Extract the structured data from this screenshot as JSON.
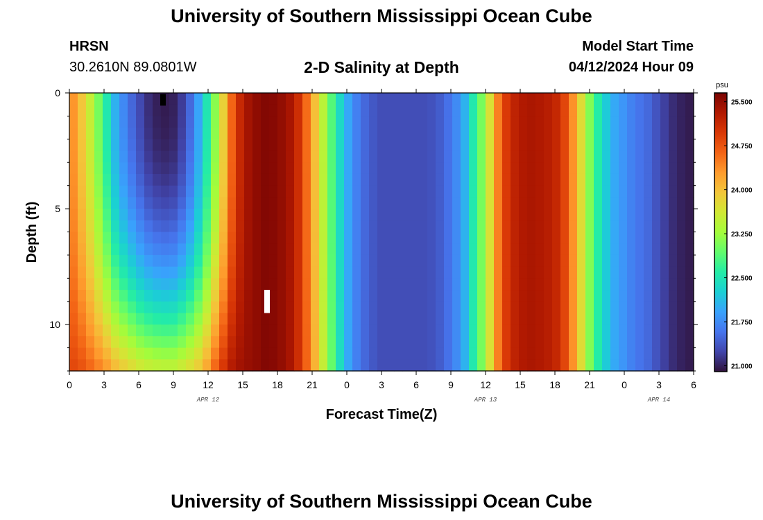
{
  "header": {
    "title": "University of Southern Mississippi Ocean Cube",
    "station": "HRSN",
    "coords": "30.2610N  89.0801W",
    "subtitle": "2-D Salinity at Depth",
    "model_start_label": "Model Start Time",
    "model_start_value": "04/12/2024 Hour 09"
  },
  "footer": {
    "title": "University of Southern Mississippi Ocean Cube"
  },
  "colors": {
    "background": "#ffffff",
    "palette": [
      "#30123b",
      "#4145ab",
      "#4675ed",
      "#39a2fc",
      "#1bcfd4",
      "#24eca6",
      "#61fc6c",
      "#a4fc3b",
      "#d1e834",
      "#f3c63a",
      "#fe9b2d",
      "#f36315",
      "#d93806",
      "#b11901",
      "#7a0403"
    ]
  },
  "chart_data": {
    "type": "heatmap",
    "title": "2-D Salinity at Depth",
    "xlabel": "Forecast Time(Z)",
    "ylabel": "Depth (ft)",
    "x_range_hours": [
      0,
      54
    ],
    "y_range_ft": [
      0,
      12
    ],
    "x_tick_hours": [
      0,
      3,
      6,
      9,
      12,
      15,
      18,
      21,
      24,
      27,
      30,
      33,
      36,
      39,
      42,
      45,
      48,
      51,
      54
    ],
    "x_tick_labels": [
      "0",
      "3",
      "6",
      "9",
      "12",
      "15",
      "18",
      "21",
      "0",
      "3",
      "6",
      "9",
      "12",
      "15",
      "18",
      "21",
      "0",
      "3",
      "6"
    ],
    "y_major_ticks": [
      0,
      5,
      10
    ],
    "y_tick_labels": [
      "0",
      "5",
      "10"
    ],
    "y_minor_step": 1,
    "date_labels": [
      {
        "label": "APR 12",
        "hour": 12
      },
      {
        "label": "APR 13",
        "hour": 36
      },
      {
        "label": "APR 14",
        "hour": 51
      }
    ],
    "colorbar": {
      "unit": "psu",
      "min": 20.9,
      "max": 25.65,
      "tick_values": [
        21.0,
        21.75,
        22.5,
        23.25,
        24.0,
        24.75,
        25.5
      ],
      "tick_labels": [
        "21.000",
        "21.750",
        "22.500",
        "23.250",
        "24.000",
        "24.750",
        "25.500"
      ]
    },
    "hours": [
      0,
      1,
      2,
      3,
      4,
      5,
      6,
      7,
      8,
      9,
      10,
      11,
      12,
      13,
      14,
      15,
      16,
      17,
      18,
      19,
      20,
      21,
      22,
      23,
      24,
      25,
      26,
      27,
      28,
      29,
      30,
      31,
      32,
      33,
      34,
      35,
      36,
      37,
      38,
      39,
      40,
      41,
      42,
      43,
      44,
      45,
      46,
      47,
      48,
      49,
      50,
      51,
      52,
      53,
      54
    ],
    "surface_salinity": [
      24.5,
      24.0,
      23.4,
      22.7,
      22.0,
      21.6,
      21.3,
      21.05,
      20.95,
      21.0,
      21.25,
      21.8,
      22.6,
      23.5,
      24.6,
      25.3,
      25.5,
      25.6,
      25.55,
      25.4,
      25.0,
      24.2,
      23.4,
      22.6,
      22.0,
      21.6,
      21.4,
      21.3,
      21.3,
      21.3,
      21.3,
      21.3,
      21.4,
      21.6,
      21.9,
      22.6,
      23.3,
      24.4,
      25.1,
      25.3,
      25.35,
      25.3,
      25.2,
      24.8,
      24.0,
      23.1,
      22.4,
      22.0,
      21.8,
      21.6,
      21.5,
      21.3,
      21.1,
      21.0,
      20.95
    ],
    "bottom_salinity": [
      24.9,
      24.8,
      24.6,
      24.4,
      24.1,
      23.9,
      23.7,
      23.6,
      23.55,
      23.55,
      23.7,
      23.9,
      24.3,
      24.9,
      25.3,
      25.45,
      25.5,
      25.6,
      25.55,
      25.4,
      25.0,
      24.3,
      23.5,
      22.7,
      22.0,
      21.6,
      21.4,
      21.3,
      21.3,
      21.3,
      21.3,
      21.3,
      21.4,
      21.6,
      21.9,
      22.6,
      23.3,
      24.4,
      25.1,
      25.3,
      25.35,
      25.3,
      25.2,
      24.8,
      24.0,
      23.1,
      22.4,
      22.0,
      21.8,
      21.6,
      21.5,
      21.3,
      21.1,
      21.0,
      20.95
    ],
    "missing_markers": [
      {
        "hour": 8.1,
        "depth_top": 0.05,
        "depth_bottom": 0.55,
        "color": "#000000"
      },
      {
        "hour": 17.1,
        "depth_top": 8.5,
        "depth_bottom": 9.5,
        "color": "#ffffff"
      }
    ]
  }
}
